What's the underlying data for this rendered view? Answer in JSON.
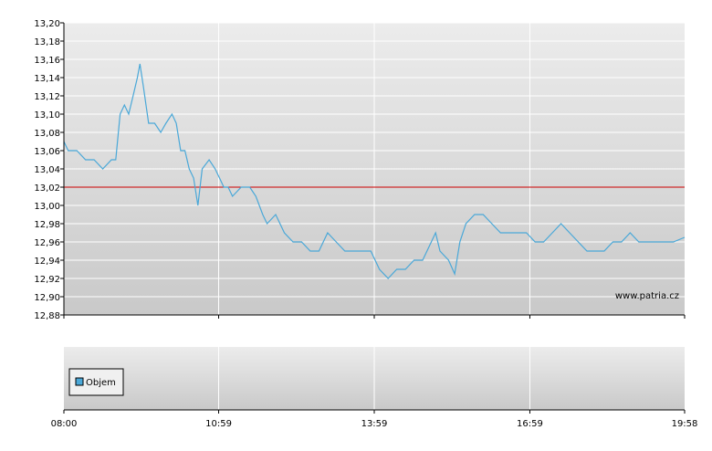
{
  "chart_data": [
    {
      "type": "line",
      "title": "",
      "xlabel": "",
      "ylabel": "",
      "ylim": [
        12.88,
        13.2
      ],
      "y_ticks": [
        "13,20",
        "13,18",
        "13,16",
        "13,14",
        "13,12",
        "13,10",
        "13,08",
        "13,06",
        "13,04",
        "13,02",
        "13,00",
        "12,98",
        "12,96",
        "12,94",
        "12,92",
        "12,90",
        "12,88"
      ],
      "x_ticks": [
        "08:00",
        "10:59",
        "13:59",
        "16:59",
        "19:58"
      ],
      "reference_line": {
        "value": 13.02,
        "color": "#cc0000"
      },
      "watermark": "www.patria.cz",
      "grid": true,
      "series": [
        {
          "color": "#4aa8d8",
          "points": [
            [
              "08:00",
              13.07
            ],
            [
              "08:05",
              13.06
            ],
            [
              "08:15",
              13.06
            ],
            [
              "08:25",
              13.05
            ],
            [
              "08:35",
              13.05
            ],
            [
              "08:45",
              13.04
            ],
            [
              "08:55",
              13.05
            ],
            [
              "09:00",
              13.05
            ],
            [
              "09:05",
              13.1
            ],
            [
              "09:10",
              13.11
            ],
            [
              "09:15",
              13.1
            ],
            [
              "09:20",
              13.12
            ],
            [
              "09:25",
              13.14
            ],
            [
              "09:28",
              13.155
            ],
            [
              "09:32",
              13.13
            ],
            [
              "09:38",
              13.09
            ],
            [
              "09:45",
              13.09
            ],
            [
              "09:52",
              13.08
            ],
            [
              "09:58",
              13.09
            ],
            [
              "10:05",
              13.1
            ],
            [
              "10:10",
              13.09
            ],
            [
              "10:15",
              13.06
            ],
            [
              "10:20",
              13.06
            ],
            [
              "10:25",
              13.04
            ],
            [
              "10:30",
              13.03
            ],
            [
              "10:35",
              13.0
            ],
            [
              "10:40",
              13.04
            ],
            [
              "10:48",
              13.05
            ],
            [
              "10:55",
              13.04
            ],
            [
              "11:00",
              13.03
            ],
            [
              "11:05",
              13.02
            ],
            [
              "11:10",
              13.02
            ],
            [
              "11:15",
              13.01
            ],
            [
              "11:25",
              13.02
            ],
            [
              "11:35",
              13.02
            ],
            [
              "11:42",
              13.01
            ],
            [
              "11:50",
              12.99
            ],
            [
              "11:55",
              12.98
            ],
            [
              "12:05",
              12.99
            ],
            [
              "12:15",
              12.97
            ],
            [
              "12:25",
              12.96
            ],
            [
              "12:35",
              12.96
            ],
            [
              "12:45",
              12.95
            ],
            [
              "12:55",
              12.95
            ],
            [
              "13:05",
              12.97
            ],
            [
              "13:15",
              12.96
            ],
            [
              "13:25",
              12.95
            ],
            [
              "13:35",
              12.95
            ],
            [
              "13:45",
              12.95
            ],
            [
              "13:55",
              12.95
            ],
            [
              "14:05",
              12.93
            ],
            [
              "14:15",
              12.92
            ],
            [
              "14:25",
              12.93
            ],
            [
              "14:35",
              12.93
            ],
            [
              "14:45",
              12.94
            ],
            [
              "14:55",
              12.94
            ],
            [
              "15:05",
              12.96
            ],
            [
              "15:10",
              12.97
            ],
            [
              "15:15",
              12.95
            ],
            [
              "15:25",
              12.94
            ],
            [
              "15:32",
              12.925
            ],
            [
              "15:38",
              12.96
            ],
            [
              "15:45",
              12.98
            ],
            [
              "15:55",
              12.99
            ],
            [
              "16:05",
              12.99
            ],
            [
              "16:15",
              12.98
            ],
            [
              "16:25",
              12.97
            ],
            [
              "16:35",
              12.97
            ],
            [
              "16:45",
              12.97
            ],
            [
              "16:55",
              12.97
            ],
            [
              "17:05",
              12.96
            ],
            [
              "17:15",
              12.96
            ],
            [
              "17:25",
              12.97
            ],
            [
              "17:35",
              12.98
            ],
            [
              "17:45",
              12.97
            ],
            [
              "17:55",
              12.96
            ],
            [
              "18:05",
              12.95
            ],
            [
              "18:15",
              12.95
            ],
            [
              "18:25",
              12.95
            ],
            [
              "18:35",
              12.96
            ],
            [
              "18:45",
              12.96
            ],
            [
              "18:55",
              12.97
            ],
            [
              "19:05",
              12.96
            ],
            [
              "19:15",
              12.96
            ],
            [
              "19:25",
              12.96
            ],
            [
              "19:35",
              12.96
            ],
            [
              "19:45",
              12.96
            ],
            [
              "19:58",
              12.965
            ]
          ]
        }
      ]
    },
    {
      "type": "bar",
      "title": "",
      "series": [
        {
          "name": "Objem",
          "color": "#4aa8d8",
          "values": []
        }
      ],
      "x_ticks": [
        "08:00",
        "10:59",
        "13:59",
        "16:59",
        "19:58"
      ],
      "legend": "top-left"
    }
  ]
}
